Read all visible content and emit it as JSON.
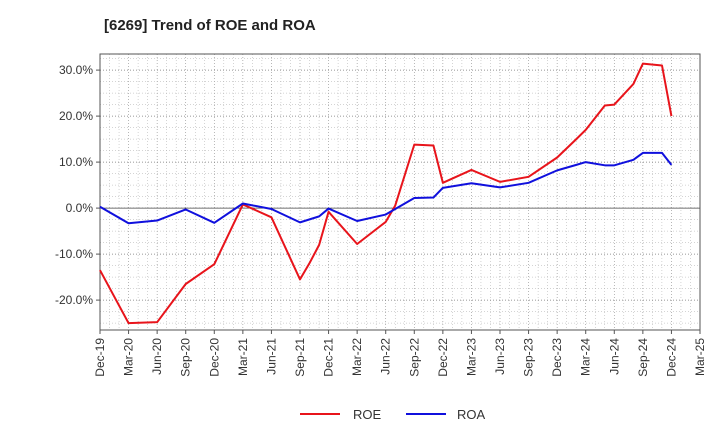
{
  "chart_data": {
    "type": "line",
    "title": "[6269]  Trend of ROE and ROA",
    "x_ticks": [
      "Dec-19",
      "Mar-20",
      "Jun-20",
      "Sep-20",
      "Dec-20",
      "Mar-21",
      "Jun-21",
      "Sep-21",
      "Dec-21",
      "Mar-22",
      "Jun-22",
      "Sep-22",
      "Dec-22",
      "Mar-23",
      "Jun-23",
      "Sep-23",
      "Dec-23",
      "Mar-24",
      "Jun-24",
      "Sep-24",
      "Dec-24",
      "Mar-25"
    ],
    "y_ticks": [
      "30.0%",
      "20.0%",
      "10.0%",
      "0.0%",
      "-10.0%",
      "-20.0%"
    ],
    "y_tick_values": [
      30,
      20,
      10,
      0,
      -10,
      -20
    ],
    "ylim": [
      -26.5,
      33.5
    ],
    "grid": true,
    "legend_position": "bottom-center",
    "series": [
      {
        "name": "ROE",
        "color": "#e8141b",
        "x": [
          0,
          1,
          2,
          3,
          4,
          5,
          6,
          7,
          7.33,
          7.67,
          8,
          9,
          10,
          10.33,
          11,
          11.67,
          12,
          13,
          14,
          15,
          16,
          16.67,
          17,
          17.67,
          18,
          18.67,
          19,
          19.67,
          20
        ],
        "values": [
          -13.5,
          -25.0,
          -24.8,
          -16.5,
          -12.2,
          0.8,
          -2.0,
          -15.5,
          -12.0,
          -8.0,
          -0.8,
          -7.8,
          -3.0,
          0.5,
          13.8,
          13.6,
          5.5,
          8.3,
          5.7,
          6.8,
          11.0,
          15.0,
          17.0,
          22.3,
          22.5,
          27.0,
          31.4,
          31.0,
          20.0
        ]
      },
      {
        "name": "ROA",
        "color": "#1010dd",
        "x": [
          0,
          1,
          2,
          3,
          4,
          5,
          6,
          7,
          7.67,
          8,
          9,
          10,
          11,
          11.67,
          12,
          13,
          14,
          15,
          16,
          16.67,
          17,
          17.67,
          18,
          18.67,
          19,
          19.67,
          20
        ],
        "values": [
          0.3,
          -3.3,
          -2.7,
          -0.3,
          -3.2,
          1.0,
          -0.2,
          -3.1,
          -1.8,
          -0.1,
          -2.8,
          -1.4,
          2.2,
          2.3,
          4.4,
          5.4,
          4.5,
          5.5,
          8.2,
          9.4,
          10.0,
          9.3,
          9.3,
          10.5,
          12.0,
          12.0,
          9.4
        ]
      }
    ]
  }
}
